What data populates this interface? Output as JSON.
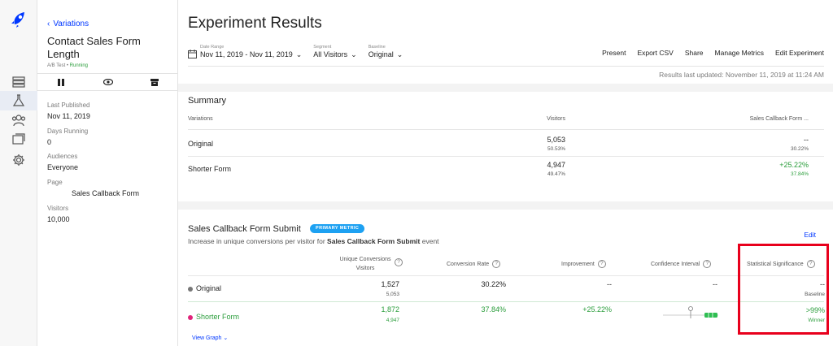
{
  "nav": {
    "items": [
      "logo-icon",
      "list-icon",
      "flask-icon",
      "audiences-icon",
      "pages-icon",
      "settings-icon"
    ]
  },
  "sidebar": {
    "back_label": "Variations",
    "title": "Contact Sales Form Length",
    "type": "A/B Test",
    "status": "Running",
    "fields": [
      {
        "label": "Last Published",
        "value": "Nov 11, 2019"
      },
      {
        "label": "Days Running",
        "value": "0"
      },
      {
        "label": "Audiences",
        "value": "Everyone"
      },
      {
        "label": "Page",
        "value": "Sales Callback Form"
      },
      {
        "label": "Visitors",
        "value": "10,000"
      }
    ]
  },
  "header": {
    "title": "Experiment Results",
    "date_range_label": "Date Range",
    "date_range_value": "Nov 11, 2019 - Nov 11, 2019",
    "segment_label": "Segment",
    "segment_value": "All Visitors",
    "baseline_label": "Baseline",
    "baseline_value": "Original",
    "links": [
      "Present",
      "Export CSV",
      "Share",
      "Manage Metrics",
      "Edit Experiment"
    ],
    "updated": "Results last updated: November 11, 2019 at 11:24 AM"
  },
  "summary": {
    "title": "Summary",
    "col_variations": "Variations",
    "col_visitors": "Visitors",
    "col_metric": "Sales Callback Form ...",
    "rows": [
      {
        "name": "Original",
        "visitors": "5,053",
        "visitors_pct": "50.53%",
        "metric": "--",
        "metric_sub": "30.22%"
      },
      {
        "name": "Shorter Form",
        "visitors": "4,947",
        "visitors_pct": "49.47%",
        "metric": "+25.22%",
        "metric_sub": "37.84%"
      }
    ]
  },
  "metric": {
    "title": "Sales Callback Form Submit",
    "badge": "PRIMARY METRIC",
    "desc_prefix": "Increase in unique conversions per visitor for",
    "desc_bold": "Sales Callback Form Submit",
    "desc_suffix": "event",
    "edit_label": "Edit",
    "col_unique_1": "Unique Conversions",
    "col_unique_2": "Visitors",
    "col_rate": "Conversion Rate",
    "col_improvement": "Improvement",
    "col_confidence": "Confidence Interval",
    "col_significance": "Statistical Significance",
    "rows": [
      {
        "name": "Original",
        "color": "#777777",
        "conversions": "1,527",
        "visitors": "5,053",
        "rate": "30.22%",
        "improvement": "--",
        "confidence": "--",
        "significance": "--",
        "significance_sub": "Baseline"
      },
      {
        "name": "Shorter Form",
        "color": "#e0247a",
        "conversions": "1,872",
        "visitors": "4,947",
        "rate": "37.84%",
        "improvement": "+25.22%",
        "confidence": "",
        "significance": ">99%",
        "significance_sub": "Winner"
      }
    ],
    "view_graph": "View Graph"
  },
  "colors": {
    "accent": "#0037ff",
    "positive": "#2a9d3b",
    "badge": "#1da1f2",
    "highlight_box": "#e8001c"
  }
}
